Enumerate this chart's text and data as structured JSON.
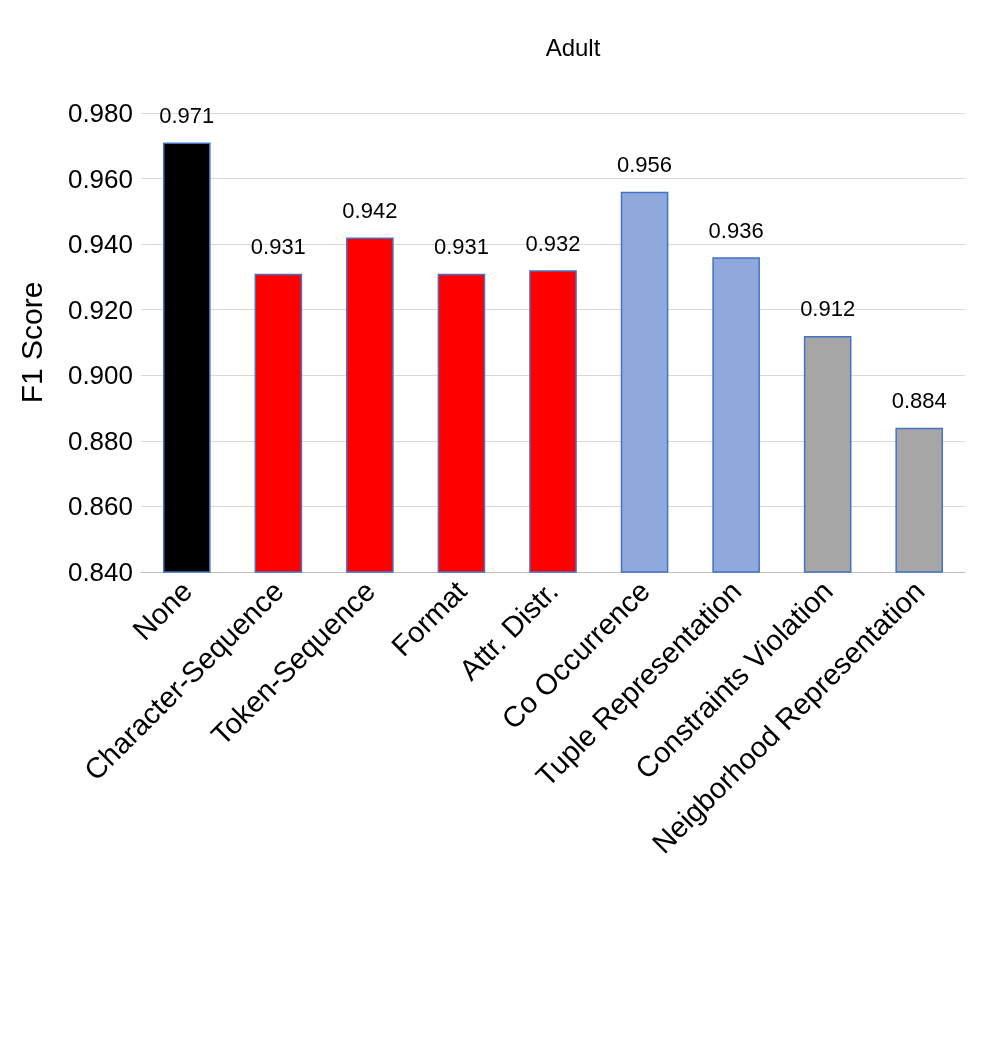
{
  "chart_data": {
    "type": "bar",
    "title": "Adult",
    "ylabel": "F1 Score",
    "categories": [
      "None",
      "Character-Sequence",
      "Token-Sequence",
      "Format",
      "Attr. Distr.",
      "Co Occurrence",
      "Tuple Representation",
      "Constraints Violation",
      "Neigborhood Representation"
    ],
    "values": [
      0.971,
      0.931,
      0.942,
      0.931,
      0.932,
      0.956,
      0.936,
      0.912,
      0.884
    ],
    "colors": [
      "#000000",
      "#ff0000",
      "#ff0000",
      "#ff0000",
      "#ff0000",
      "#8fa9dc",
      "#8fa9dc",
      "#a6a6a6",
      "#a6a6a6"
    ],
    "ylim": [
      0.84,
      0.98
    ],
    "yticks": [
      {
        "value": 0.84,
        "label": "0.840"
      },
      {
        "value": 0.86,
        "label": "0.860"
      },
      {
        "value": 0.88,
        "label": "0.880"
      },
      {
        "value": 0.9,
        "label": "0.900"
      },
      {
        "value": 0.92,
        "label": "0.920"
      },
      {
        "value": 0.94,
        "label": "0.940"
      },
      {
        "value": 0.96,
        "label": "0.960"
      },
      {
        "value": 0.98,
        "label": "0.980"
      }
    ],
    "grid": "y",
    "data_labels": true
  }
}
